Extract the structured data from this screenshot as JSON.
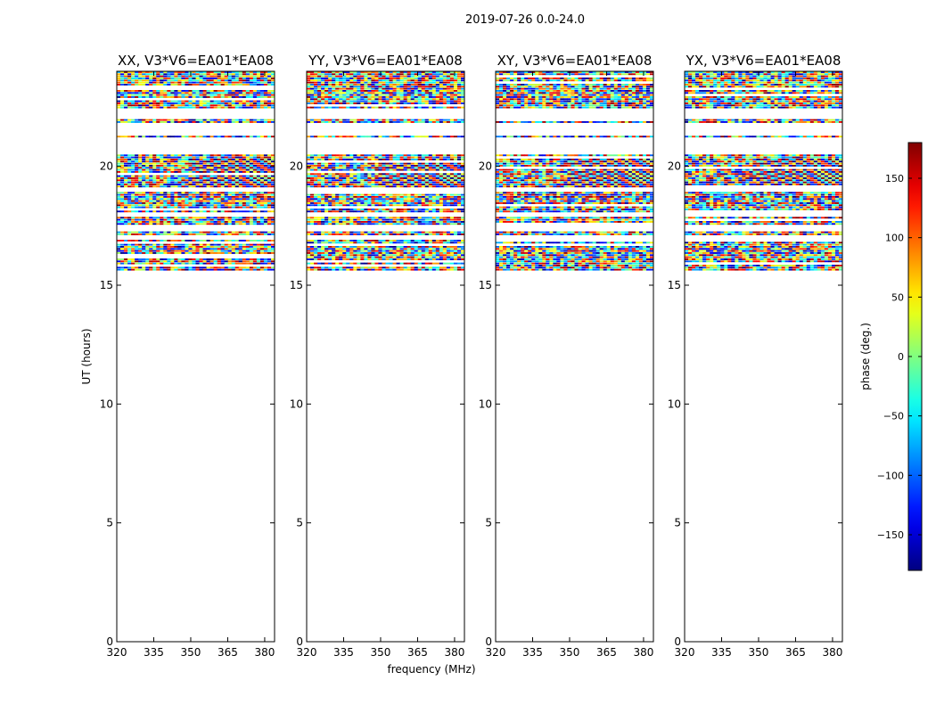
{
  "figure": {
    "suptitle": "2019-07-26 0.0-24.0"
  },
  "chart_data": {
    "type": "heatmap",
    "suptitle": "2019-07-26 0.0-24.0",
    "xlabel": "frequency (MHz)",
    "ylabel": "UT (hours)",
    "xlim": [
      320,
      384
    ],
    "ylim": [
      0,
      24
    ],
    "xticks": [
      320,
      335,
      350,
      365,
      380
    ],
    "yticks": [
      0,
      5,
      10,
      15,
      20
    ],
    "value_label": "phase (deg.)",
    "value_range": [
      -180,
      180
    ],
    "colorbar_ticks": [
      150,
      100,
      50,
      0,
      -50,
      -100,
      -150
    ],
    "colormap": "jet",
    "data_time_range": [
      15.6,
      24.0
    ],
    "panels": [
      {
        "title": "XX, V3*V6=EA01*EA08",
        "polarization": "XX"
      },
      {
        "title": "YY, V3*V6=EA01*EA08",
        "polarization": "YY"
      },
      {
        "title": "XY, V3*V6=EA01*EA08",
        "polarization": "XY"
      },
      {
        "title": "YX, V3*V6=EA01*EA08",
        "polarization": "YX"
      }
    ],
    "empty_time_bands": [
      [
        21.3,
        21.8
      ],
      [
        20.5,
        21.2
      ],
      [
        18.9,
        19.1
      ],
      [
        17.9,
        18.05
      ],
      [
        17.3,
        17.5
      ],
      [
        16.95,
        17.1
      ],
      [
        22.0,
        22.45
      ]
    ]
  }
}
